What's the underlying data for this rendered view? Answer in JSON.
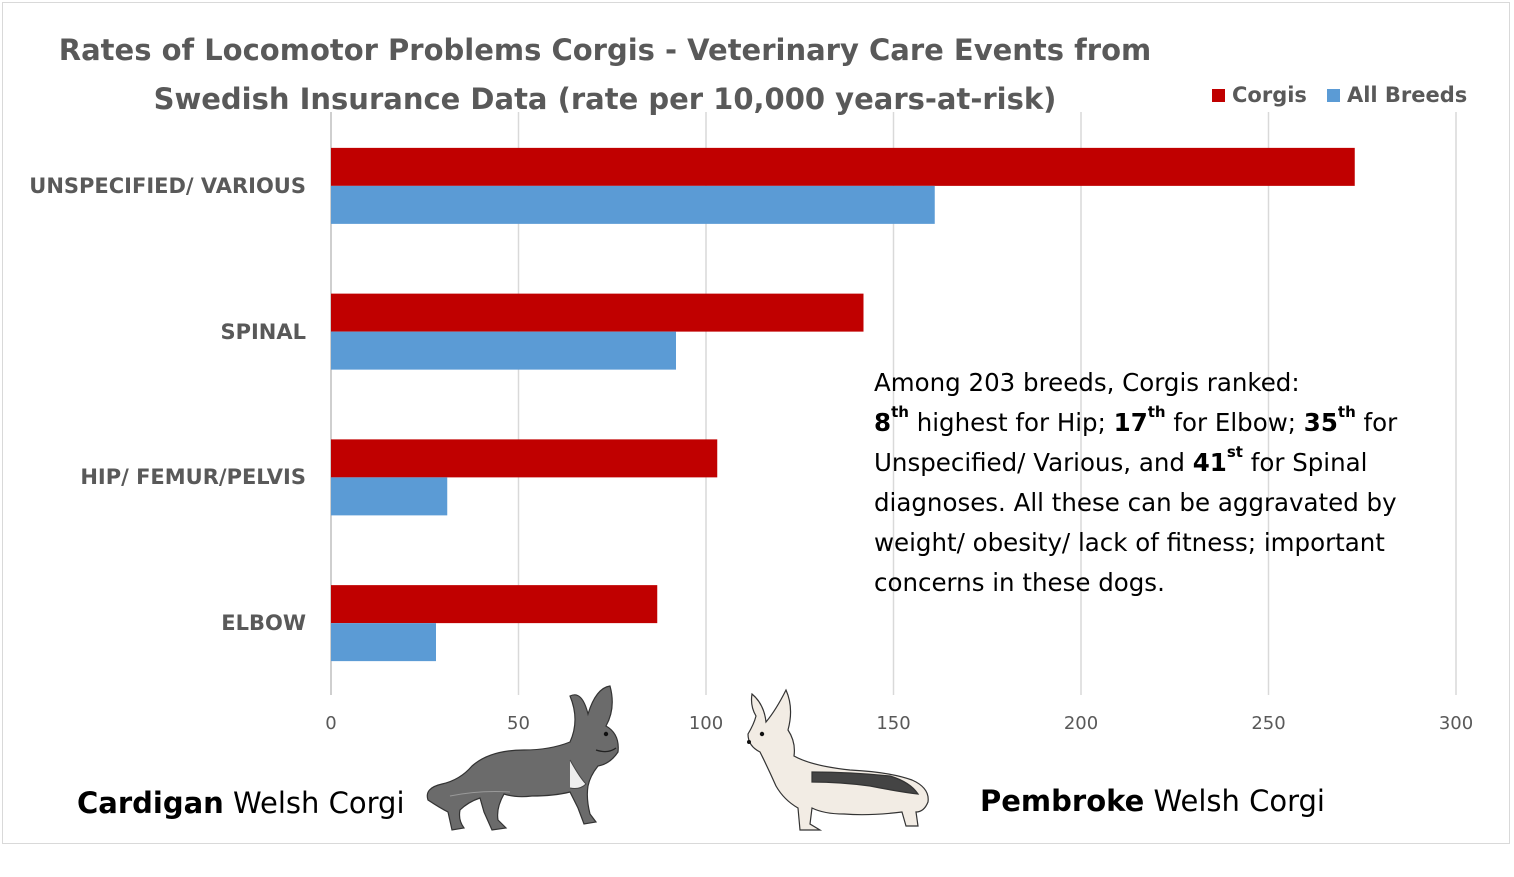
{
  "chart_data": {
    "type": "bar",
    "orientation": "horizontal",
    "title_line1": "Rates of Locomotor Problems Corgis - Veterinary Care Events from",
    "title_line2": "Swedish Insurance Data (rate per 10,000 years-at-risk)",
    "categories": [
      "UNSPECIFIED/ VARIOUS",
      "SPINAL",
      "HIP/ FEMUR/PELVIS",
      "ELBOW"
    ],
    "series": [
      {
        "name": "Corgis",
        "color": "#c00000",
        "values": [
          273,
          142,
          103,
          87
        ]
      },
      {
        "name": "All Breeds",
        "color": "#5b9bd5",
        "values": [
          161,
          92,
          31,
          28
        ]
      }
    ],
    "xlim": [
      0,
      300
    ],
    "xticks": [
      "0",
      "50",
      "100",
      "150",
      "200",
      "250",
      "300"
    ],
    "grid": "vertical",
    "legend_position": "top-right"
  },
  "annotation": {
    "line1": "Among 203 breeds, Corgis ranked:",
    "hip_rank": "8",
    "hip_sup": "th",
    "hip_text": " highest for Hip; ",
    "elbow_rank": "17",
    "elbow_sup": "th",
    "elbow_text": " for Elbow; ",
    "unspec_rank": "35",
    "unspec_sup": "th",
    "unspec_text": " for Unspecified/ Various, and ",
    "spinal_rank": "41",
    "spinal_sup": "st",
    "spinal_text": " for Spinal diagnoses.  All these can be aggravated by weight/ obesity/ lack of fitness; important concerns in these dogs."
  },
  "breeds": {
    "cardigan_bold": "Cardigan",
    "cardigan_rest": " Welsh Corgi",
    "pembroke_bold": "Pembroke",
    "pembroke_rest": " Welsh Corgi"
  },
  "images": {
    "cardigan": "cardigan-corgi-drawing",
    "pembroke": "pembroke-corgi-drawing"
  }
}
